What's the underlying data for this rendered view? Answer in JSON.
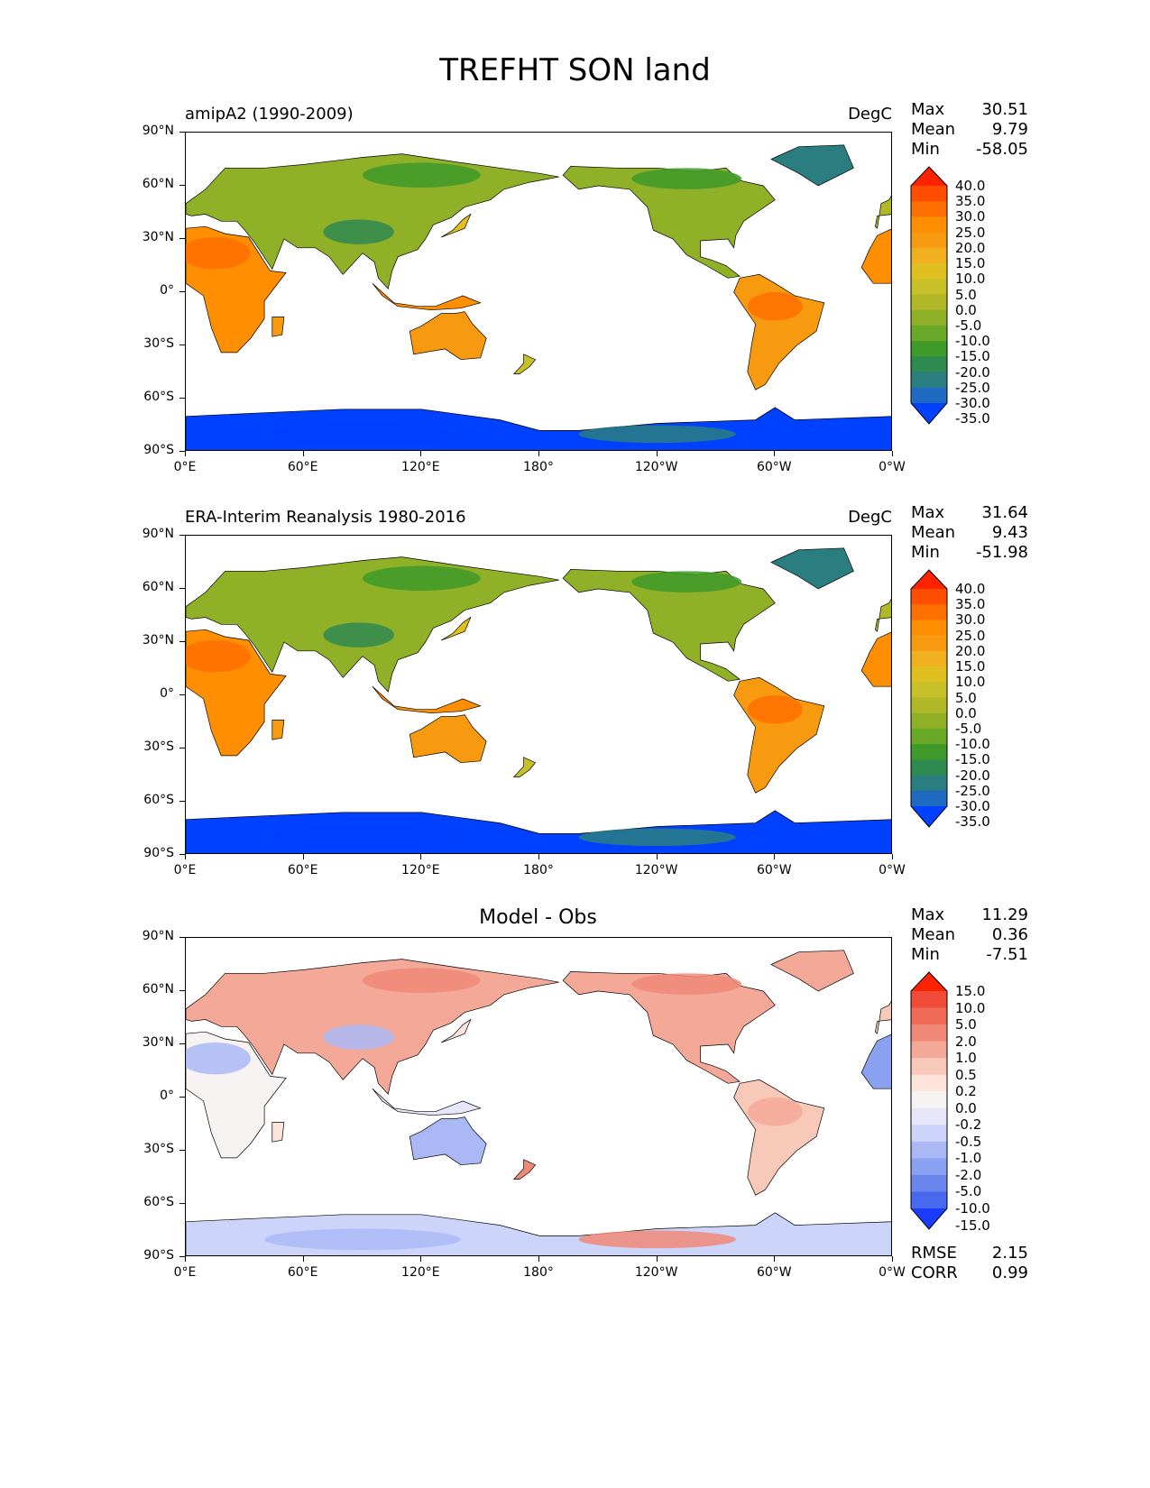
{
  "title": "TREFHT SON land",
  "xticks": [
    "0°E",
    "60°E",
    "120°E",
    "180°",
    "120°W",
    "60°W",
    "0°W"
  ],
  "yticks": [
    "90°N",
    "60°N",
    "30°N",
    "0°",
    "30°S",
    "60°S",
    "90°S"
  ],
  "panels": [
    {
      "left_title": "amipA2 (1990-2009)",
      "units": "DegC",
      "center_title": "",
      "stats": [
        {
          "label": "Max",
          "value": "30.51"
        },
        {
          "label": "Mean",
          "value": "9.79"
        },
        {
          "label": "Min",
          "value": "-58.05"
        }
      ],
      "colorbar_levels": [
        "40.0",
        "35.0",
        "30.0",
        "25.0",
        "20.0",
        "15.0",
        "10.0",
        "5.0",
        "0.0",
        "-5.0",
        "-10.0",
        "-15.0",
        "-20.0",
        "-25.0",
        "-30.0",
        "-35.0"
      ],
      "footer_stats": []
    },
    {
      "left_title": "ERA-Interim Reanalysis 1980-2016",
      "units": "DegC",
      "center_title": "",
      "stats": [
        {
          "label": "Max",
          "value": "31.64"
        },
        {
          "label": "Mean",
          "value": "9.43"
        },
        {
          "label": "Min",
          "value": "-51.98"
        }
      ],
      "colorbar_levels": [
        "40.0",
        "35.0",
        "30.0",
        "25.0",
        "20.0",
        "15.0",
        "10.0",
        "5.0",
        "0.0",
        "-5.0",
        "-10.0",
        "-15.0",
        "-20.0",
        "-25.0",
        "-30.0",
        "-35.0"
      ],
      "footer_stats": []
    },
    {
      "left_title": "",
      "units": "",
      "center_title": "Model - Obs",
      "stats": [
        {
          "label": "Max",
          "value": "11.29"
        },
        {
          "label": "Mean",
          "value": "0.36"
        },
        {
          "label": "Min",
          "value": "-7.51"
        }
      ],
      "colorbar_levels": [
        "15.0",
        "10.0",
        "5.0",
        "2.0",
        "1.0",
        "0.5",
        "0.2",
        "0.0",
        "-0.2",
        "-0.5",
        "-1.0",
        "-2.0",
        "-5.0",
        "-10.0",
        "-15.0"
      ],
      "footer_stats": [
        {
          "label": "RMSE",
          "value": "2.15"
        },
        {
          "label": "CORR",
          "value": "0.99"
        }
      ]
    }
  ],
  "colors": {
    "temp_scale": [
      "#ff2200",
      "#ff4e00",
      "#ff7000",
      "#ff8e00",
      "#f79a10",
      "#f0b020",
      "#e0c020",
      "#c8c028",
      "#b0b828",
      "#90b028",
      "#6aa828",
      "#3f9a2a",
      "#2f8a50",
      "#2a7e80",
      "#1e6ac0",
      "#0040ff"
    ],
    "diff_scale": [
      "#ff2200",
      "#f04a38",
      "#f06a58",
      "#f08878",
      "#f4a898",
      "#f8c8b8",
      "#fce4da",
      "#f7f3f3",
      "#e6e6f8",
      "#ccd4fa",
      "#aab8f6",
      "#8aa0f0",
      "#6a86ec",
      "#4868f0",
      "#1a3cff"
    ],
    "ocean": "#ffffff"
  }
}
